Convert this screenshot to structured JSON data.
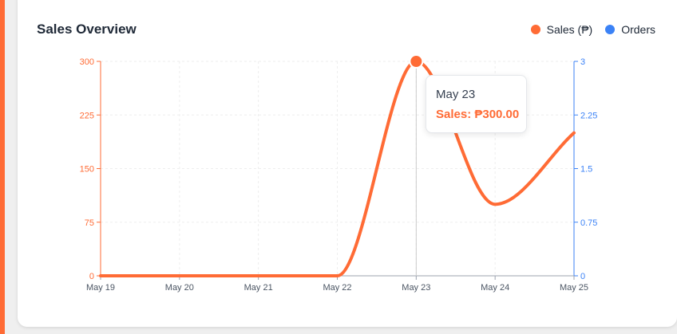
{
  "page": {
    "title": "Sales Overview"
  },
  "legend": [
    {
      "label": "Sales (₱)",
      "color": "#ff6b35"
    },
    {
      "label": "Orders",
      "color": "#3b82f6"
    }
  ],
  "tooltip": {
    "date": "May 23",
    "value_label": "Sales: ₱300.00"
  },
  "colors": {
    "accent": "#ff6b35",
    "sales": "#ff6b35",
    "orders": "#3b82f6",
    "axis": "#9ca3af",
    "grid": "#eeeeee"
  },
  "chart_data": {
    "type": "line",
    "title": "Sales Overview",
    "categories": [
      "May 19",
      "May 20",
      "May 21",
      "May 22",
      "May 23",
      "May 24",
      "May 25"
    ],
    "series": [
      {
        "name": "Sales (₱)",
        "axis": "left",
        "values": [
          0,
          0,
          0,
          0,
          300,
          100,
          200
        ]
      },
      {
        "name": "Orders",
        "axis": "right",
        "values": [
          0,
          0,
          0,
          0,
          3,
          1,
          2
        ]
      }
    ],
    "y_left": {
      "ylim": [
        0,
        300
      ],
      "ticks": [
        0,
        75,
        150,
        225,
        300
      ],
      "tick_labels": [
        "0",
        "75",
        "150",
        "225",
        "300"
      ]
    },
    "y_right": {
      "ylim": [
        0,
        3
      ],
      "ticks": [
        0,
        0.75,
        1.5,
        2.25,
        3
      ],
      "tick_labels": [
        "0",
        "0.75",
        "1.5",
        "2.25",
        "3"
      ]
    },
    "highlight_index": 4,
    "grid": true,
    "legend_position": "top-right"
  }
}
